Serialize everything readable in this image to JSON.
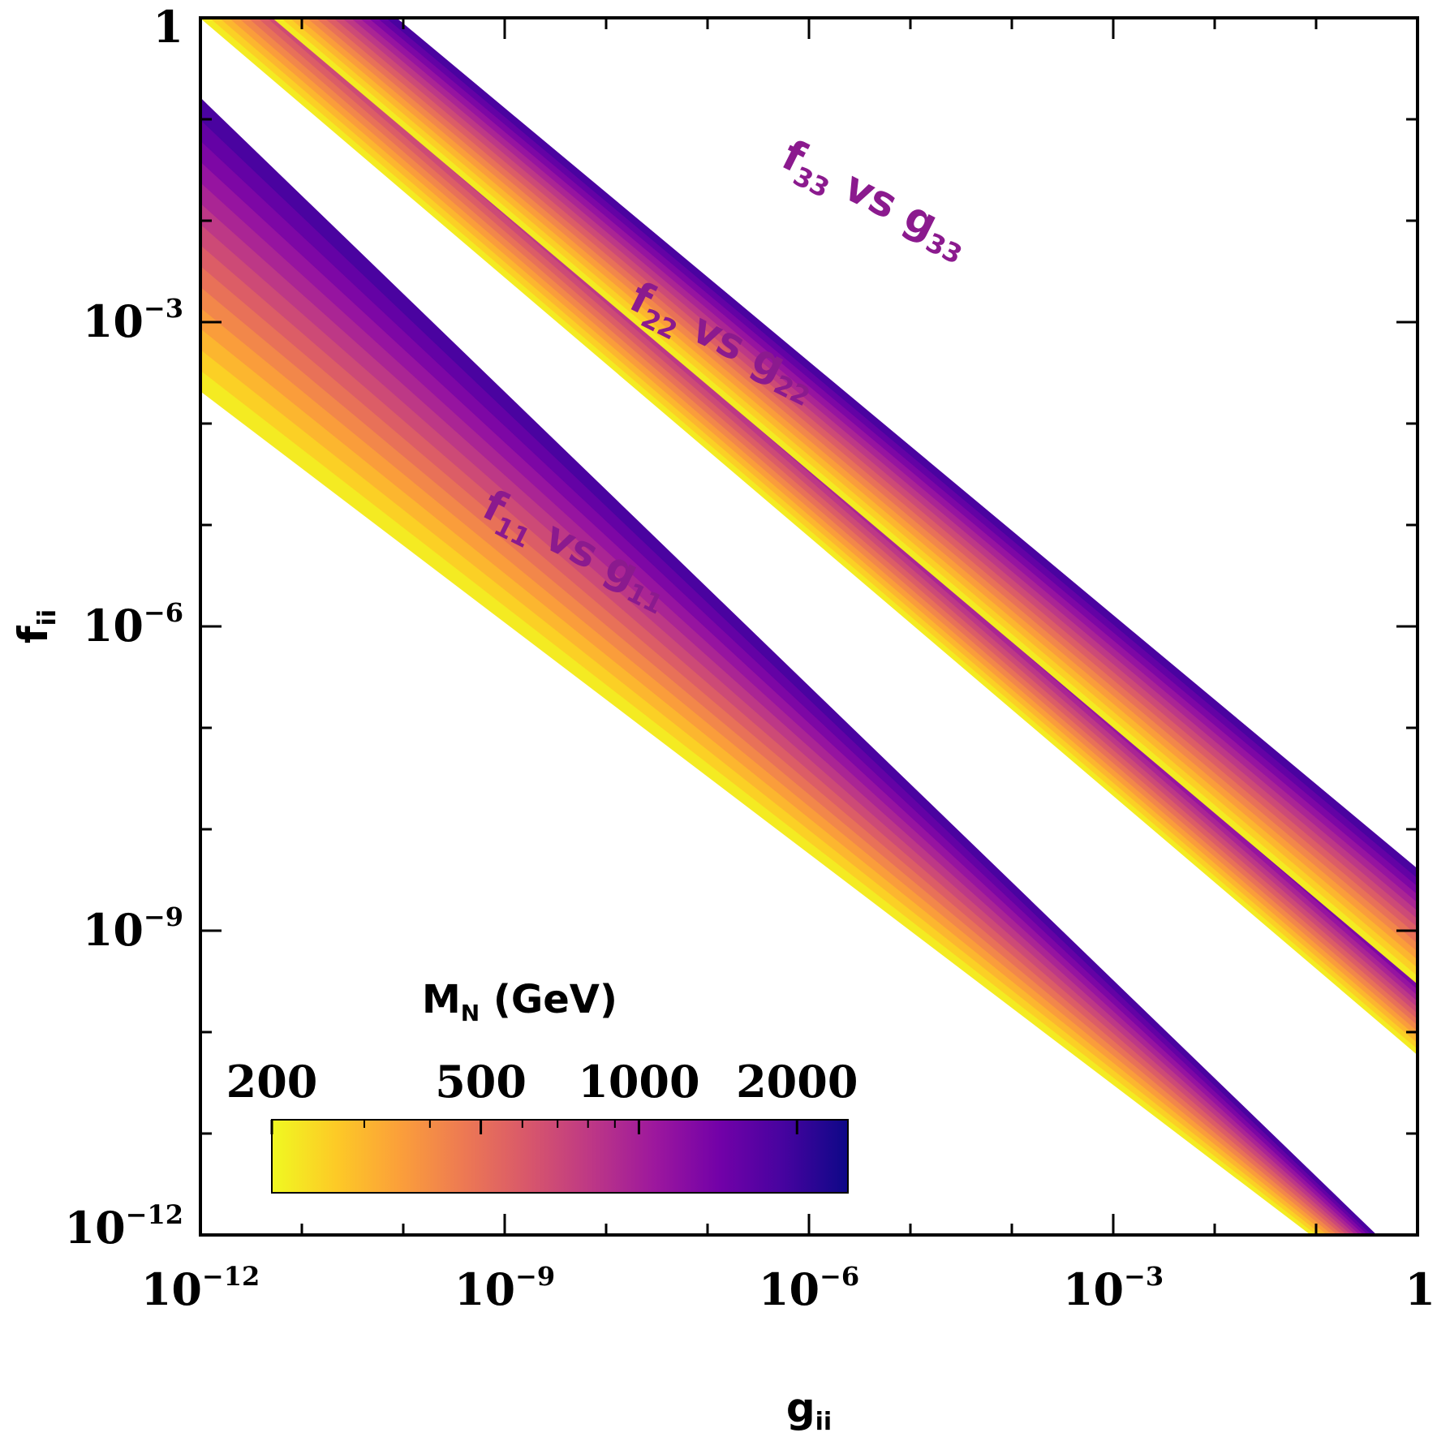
{
  "chart_data": {
    "type": "scatter",
    "x_scale": "log",
    "y_scale": "log",
    "xlim": [
      1e-12,
      1
    ],
    "ylim": [
      1e-12,
      1
    ],
    "x_ticks": [
      {
        "value": 1e-12,
        "base": "10",
        "exp": "−12"
      },
      {
        "value": 1e-09,
        "base": "10",
        "exp": "−9"
      },
      {
        "value": 1e-06,
        "base": "10",
        "exp": "−6"
      },
      {
        "value": 0.001,
        "base": "10",
        "exp": "−3"
      },
      {
        "value": 1,
        "base": "1",
        "exp": ""
      }
    ],
    "y_ticks": [
      {
        "value": 1,
        "base": "1",
        "exp": ""
      },
      {
        "value": 0.001,
        "base": "10",
        "exp": "−3"
      },
      {
        "value": 1e-06,
        "base": "10",
        "exp": "−6"
      },
      {
        "value": 1e-09,
        "base": "10",
        "exp": "−9"
      },
      {
        "value": 1e-12,
        "base": "10",
        "exp": "−12"
      }
    ],
    "xlabel": {
      "main": "g",
      "sub": "ii"
    },
    "ylabel": {
      "main": "f",
      "sub": "ii"
    },
    "colorbar": {
      "title_main": "M",
      "title_sub": "N",
      "title_unit": " (GeV)",
      "scale": "log",
      "range": [
        200,
        2500
      ],
      "ticks": [
        {
          "value": 200,
          "label": "200"
        },
        {
          "value": 500,
          "label": "500"
        },
        {
          "value": 1000,
          "label": "1000"
        },
        {
          "value": 2000,
          "label": "2000"
        }
      ],
      "colormap": [
        "#f0f921",
        "#fdca26",
        "#fb9f3a",
        "#ed7953",
        "#d8576b",
        "#bd3786",
        "#9c179e",
        "#7201a8",
        "#46039f",
        "#0d0887"
      ]
    },
    "series": [
      {
        "label_f": "f",
        "label_f_sub": "11",
        "label_vs": " vs ",
        "label_g": "g",
        "label_g_sub": "11",
        "label_anchor_log": [
          -8.35,
          -5.35
        ],
        "relation": "f ∝ g^(-1/2)",
        "f_at_g_1e-12": {
          "M200": 0.00021,
          "M2000": 0.16
        },
        "f_at_g_1": {
          "M200": 1.6e-13,
          "M2000": 4e-13
        }
      },
      {
        "label_f": "f",
        "label_f_sub": "22",
        "label_vs": " vs ",
        "label_g": "g",
        "label_g_sub": "22",
        "label_anchor_log": [
          -6.9,
          -3.3
        ],
        "relation": "f ∝ g^(-1/2)",
        "f_at_g_1e-12": {
          "M200": 1.0,
          "M2000": 14
        },
        "f_at_g_1": {
          "M200": 6e-11,
          "M2000": 4e-10
        }
      },
      {
        "label_f": "f",
        "label_f_sub": "33",
        "label_vs": " vs ",
        "label_g": "g",
        "label_g_sub": "33",
        "label_anchor_log": [
          -5.4,
          -1.9
        ],
        "relation": "f ∝ g^(-1/2)",
        "f_at_g_1e-12": {
          "M200": 4,
          "M2000": 40
        },
        "f_at_g_1": {
          "M200": 3e-10,
          "M2000": 4e-09
        }
      }
    ],
    "band_label_color": "#8b1a8e",
    "grid": false,
    "legend": "colorbar bottom-left"
  }
}
